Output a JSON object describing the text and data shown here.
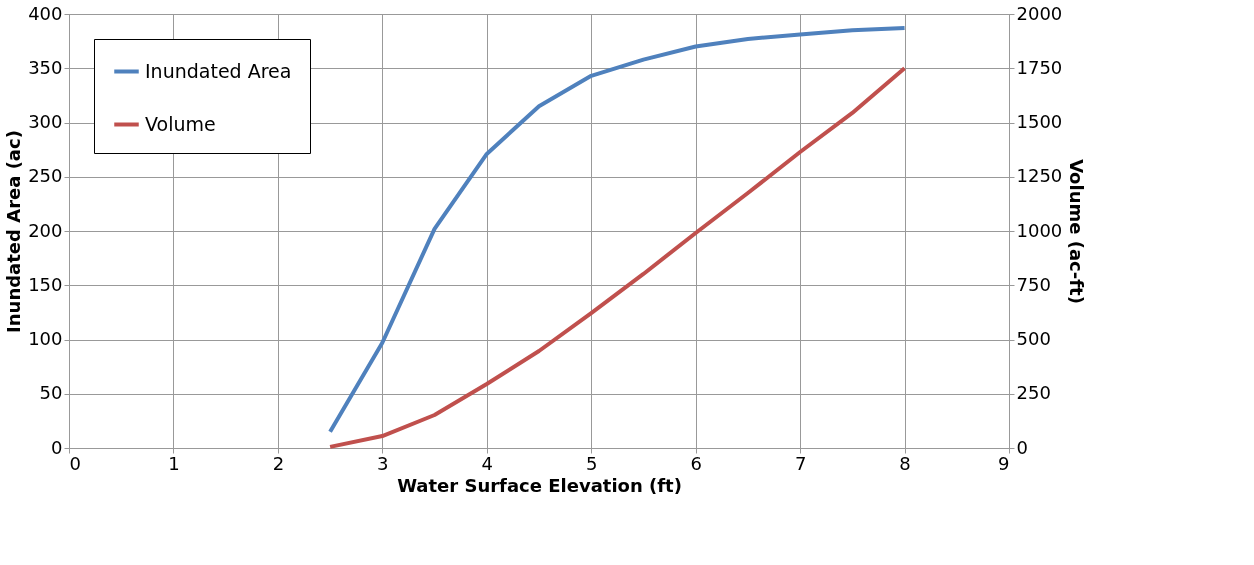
{
  "chart_data": {
    "type": "line",
    "xlabel": "Water Surface Elevation (ft)",
    "ylabel": "Inundated Area (ac)",
    "y2label": "Volume (ac-ft)",
    "x": [
      2.5,
      3,
      3.5,
      4,
      4.5,
      5,
      5.5,
      6,
      6.5,
      7,
      7.5,
      8
    ],
    "series": [
      {
        "name": "Inundated Area",
        "color": "#4f81bd",
        "values": [
          15,
          97,
          202,
          271,
          315,
          343,
          358,
          370,
          377,
          381,
          385,
          387
        ]
      },
      {
        "name": "Volume",
        "color": "#c0504d",
        "axis": "y2",
        "values": [
          5,
          55,
          152,
          295,
          447,
          622,
          802,
          991,
          1175,
          1364,
          1544,
          1750
        ]
      }
    ],
    "xlim": [
      0,
      9
    ],
    "xticks": [
      0,
      1,
      2,
      3,
      4,
      5,
      6,
      7,
      8,
      9
    ],
    "ylim": [
      0,
      400
    ],
    "yticks": [
      0,
      50,
      100,
      150,
      200,
      250,
      300,
      350,
      400
    ],
    "y2lim": [
      0,
      2000
    ],
    "y2ticks": [
      0,
      250,
      500,
      750,
      1000,
      1250,
      1500,
      1750,
      2000
    ],
    "grid": true,
    "legend": "top left",
    "marker": "none",
    "line_style": "solid"
  }
}
